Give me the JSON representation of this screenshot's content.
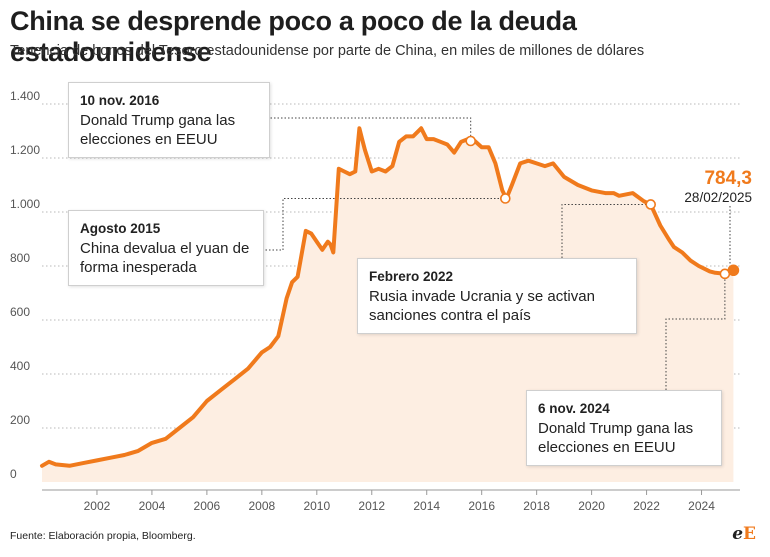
{
  "header": {
    "title": "China se desprende poco a poco de la deuda estadounidense",
    "subtitle": "Tenencia de bonos del Tesoro estadounidense por parte de China, en miles de millones de dólares"
  },
  "footer": {
    "source": "Fuente: Elaboración propia, Bloomberg.",
    "logo_a": "e",
    "logo_b": "E"
  },
  "annotations": {
    "trump2016": {
      "date": "10 nov. 2016",
      "text": "Donald Trump gana las elecciones en EEUU"
    },
    "devalua2015": {
      "date": "Agosto 2015",
      "text": "China devalua el yuan de forma inesperada"
    },
    "rusia2022": {
      "date": "Febrero 2022",
      "text": "Rusia invade Ucrania y se activan sanciones contra el país"
    },
    "trump2024": {
      "date": "6 nov. 2024",
      "text": "Donald Trump gana las elecciones en EEUU"
    }
  },
  "last_point": {
    "value_label": "784,3",
    "date_label": "28/02/2025"
  },
  "colors": {
    "line": "#f07a1c",
    "area": "#fdeee2",
    "marker_fill": "#ffffff"
  },
  "chart_data": {
    "type": "area",
    "title": "China se desprende poco a poco de la deuda estadounidense",
    "subtitle": "Tenencia de bonos del Tesoro estadounidense por parte de China, en miles de millones de dólares",
    "xlabel": "",
    "ylabel": "",
    "xlim": [
      2000.0,
      2025.4
    ],
    "ylim": [
      0,
      1400
    ],
    "x_ticks": [
      2002,
      2004,
      2006,
      2008,
      2010,
      2012,
      2014,
      2016,
      2018,
      2020,
      2022,
      2024
    ],
    "y_ticks": [
      0,
      200,
      400,
      600,
      800,
      1000,
      1200,
      1400
    ],
    "y_tick_labels": [
      "0",
      "200",
      "400",
      "600",
      "800",
      "1.000",
      "1.200",
      "1.400"
    ],
    "grid": true,
    "series": [
      {
        "x": [
          2000.0,
          2000.25,
          2000.5,
          2001.0,
          2001.5,
          2002.0,
          2002.5,
          2003.0,
          2003.5,
          2004.0,
          2004.5,
          2005.0,
          2005.5,
          2006.0,
          2006.5,
          2007.0,
          2007.5,
          2008.0,
          2008.3,
          2008.6,
          2008.9,
          2009.1,
          2009.3,
          2009.6,
          2009.8,
          2010.0,
          2010.2,
          2010.4,
          2010.5,
          2010.6,
          2010.8,
          2011.0,
          2011.2,
          2011.4,
          2011.55,
          2011.65,
          2011.75,
          2012.0,
          2012.25,
          2012.5,
          2012.75,
          2013.0,
          2013.25,
          2013.5,
          2013.8,
          2014.0,
          2014.25,
          2014.5,
          2014.75,
          2015.0,
          2015.25,
          2015.5,
          2015.75,
          2016.0,
          2016.25,
          2016.5,
          2016.75,
          2016.9,
          2017.1,
          2017.4,
          2017.7,
          2018.0,
          2018.3,
          2018.6,
          2019.0,
          2019.5,
          2020.0,
          2020.5,
          2020.8,
          2021.0,
          2021.5,
          2021.9,
          2022.15,
          2022.5,
          2022.8,
          2023.0,
          2023.3,
          2023.6,
          2023.9,
          2024.1,
          2024.3,
          2024.5,
          2024.85,
          2025.16
        ],
        "y": [
          60,
          75,
          65,
          60,
          70,
          80,
          90,
          100,
          115,
          145,
          160,
          200,
          240,
          300,
          340,
          380,
          420,
          480,
          500,
          540,
          680,
          740,
          760,
          930,
          920,
          890,
          860,
          890,
          880,
          850,
          1160,
          1150,
          1140,
          1150,
          1310,
          1270,
          1230,
          1150,
          1160,
          1150,
          1170,
          1260,
          1280,
          1280,
          1310,
          1270,
          1270,
          1260,
          1250,
          1220,
          1260,
          1270,
          1263,
          1240,
          1240,
          1180,
          1080,
          1050,
          1100,
          1180,
          1190,
          1180,
          1170,
          1180,
          1130,
          1100,
          1080,
          1070,
          1070,
          1060,
          1070,
          1040,
          1028,
          950,
          900,
          870,
          850,
          820,
          800,
          790,
          780,
          775,
          771,
          784.3
        ]
      }
    ],
    "markers": [
      {
        "x": 2015.6,
        "y": 1263
      },
      {
        "x": 2016.86,
        "y": 1050
      },
      {
        "x": 2022.15,
        "y": 1028
      },
      {
        "x": 2024.85,
        "y": 771
      },
      {
        "x": 2025.16,
        "y": 784.3
      }
    ]
  }
}
